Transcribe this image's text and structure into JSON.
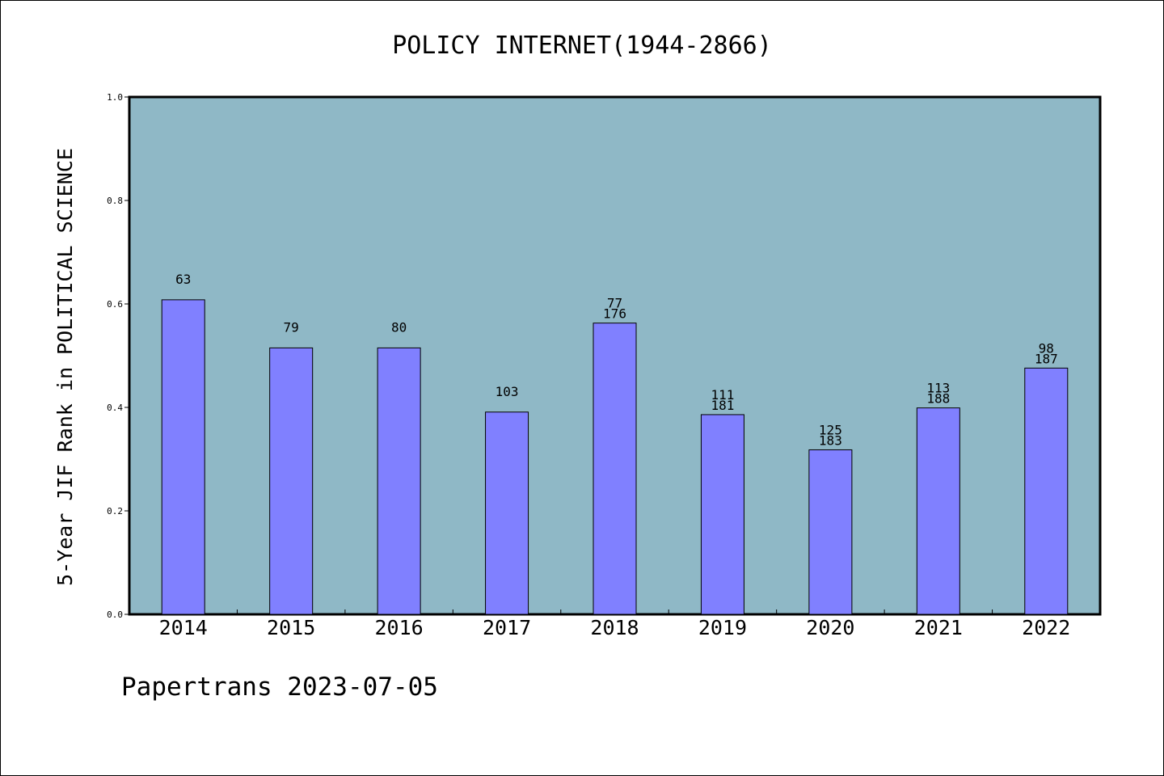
{
  "chart_data": {
    "type": "bar",
    "title": "POLICY INTERNET(1944-2866)",
    "xlabel": "",
    "ylabel": "5-Year JIF Rank in POLITICAL SCIENCE",
    "ylim": [
      0,
      1.0
    ],
    "yticks": [
      "0.0",
      "0.2",
      "0.4",
      "0.6",
      "0.8",
      "1.0"
    ],
    "categories": [
      "2014",
      "2015",
      "2016",
      "2017",
      "2018",
      "2019",
      "2020",
      "2021",
      "2022"
    ],
    "values": [
      0.608,
      0.515,
      0.515,
      0.391,
      0.563,
      0.386,
      0.318,
      0.399,
      0.476
    ],
    "rank_labels": [
      [
        "63"
      ],
      [
        "79"
      ],
      [
        "80"
      ],
      [
        "103"
      ],
      [
        "77",
        "176"
      ],
      [
        "111",
        "181"
      ],
      [
        "125",
        "183"
      ],
      [
        "113",
        "188"
      ],
      [
        "98",
        "187"
      ]
    ],
    "grid": false,
    "colors": {
      "plot_bg": "#8fb8c6",
      "bar": "#8080ff"
    }
  },
  "footer": "Papertrans 2023-07-05"
}
